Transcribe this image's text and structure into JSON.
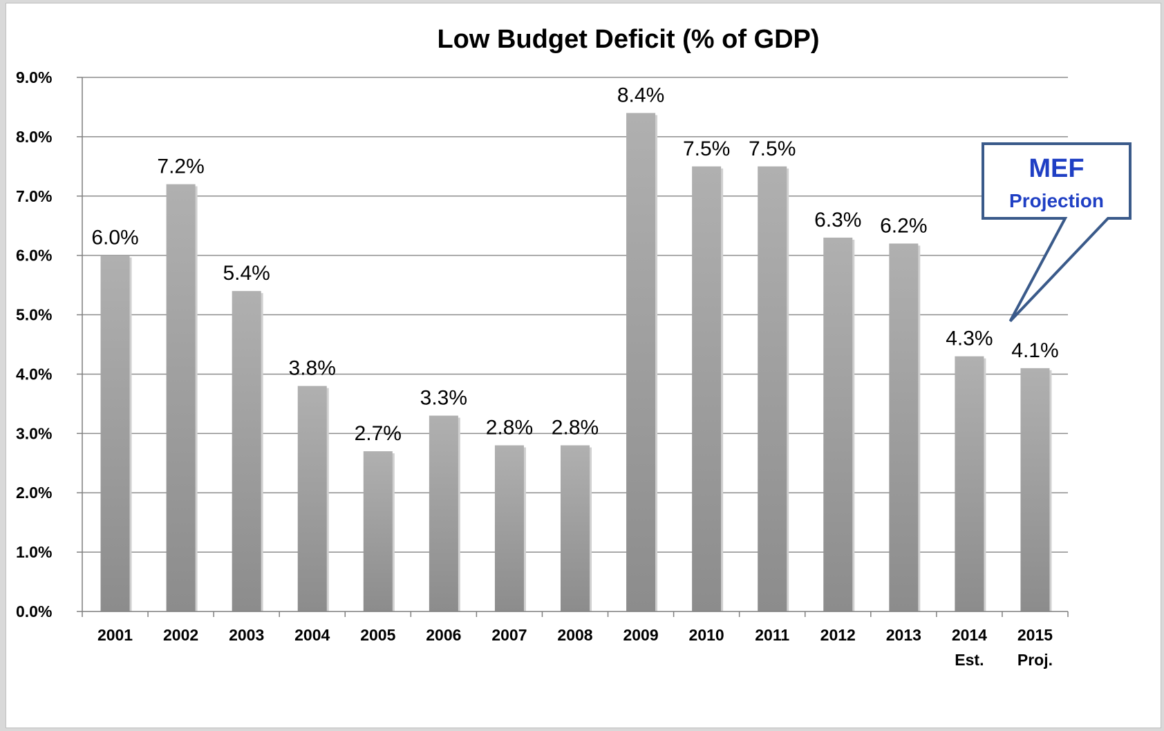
{
  "chart_data": {
    "type": "bar",
    "title": "Low Budget Deficit  (% of GDP)",
    "categories": [
      "2001",
      "2002",
      "2003",
      "2004",
      "2005",
      "2006",
      "2007",
      "2008",
      "2009",
      "2010",
      "2011",
      "2012",
      "2013",
      "2014",
      "2015"
    ],
    "category_sublabels": [
      "",
      "",
      "",
      "",
      "",
      "",
      "",
      "",
      "",
      "",
      "",
      "",
      "",
      "Est.",
      "Proj."
    ],
    "values": [
      6.0,
      7.2,
      5.4,
      3.8,
      2.7,
      3.3,
      2.8,
      2.8,
      8.4,
      7.5,
      7.5,
      6.3,
      6.2,
      4.3,
      4.1
    ],
    "data_labels": [
      "6.0%",
      "7.2%",
      "5.4%",
      "3.8%",
      "2.7%",
      "3.3%",
      "2.8%",
      "2.8%",
      "8.4%",
      "7.5%",
      "7.5%",
      "6.3%",
      "6.2%",
      "4.3%",
      "4.1%"
    ],
    "y_ticks": [
      "0.0%",
      "1.0%",
      "2.0%",
      "3.0%",
      "4.0%",
      "5.0%",
      "6.0%",
      "7.0%",
      "8.0%",
      "9.0%"
    ],
    "ylim": [
      0,
      9
    ],
    "grid": true,
    "bar_color": "#a6a6a6",
    "annotation": {
      "title": "MEF",
      "subtitle": "Projection",
      "points_to": "2015",
      "border_color": "#3a5a8a",
      "text_color": "#1f3fc4"
    }
  }
}
